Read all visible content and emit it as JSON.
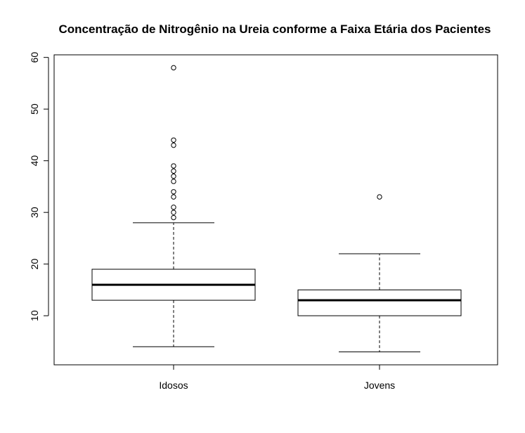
{
  "chart_data": {
    "type": "boxplot",
    "title": "Concentração de Nitrogênio na Ureia conforme a Faixa Etária dos Pacientes",
    "xlabel": "",
    "ylabel": "",
    "ylim": [
      0.5,
      60.5
    ],
    "yticks": [
      10,
      20,
      30,
      40,
      50,
      60
    ],
    "categories": [
      "Idosos",
      "Jovens"
    ],
    "boxes": [
      {
        "name": "Idosos",
        "min": 4,
        "q1": 13,
        "median": 16,
        "q3": 19,
        "max": 28,
        "outliers": [
          29,
          30,
          31,
          33,
          34,
          36,
          37,
          38,
          39,
          43,
          44,
          58
        ]
      },
      {
        "name": "Jovens",
        "min": 3,
        "q1": 10,
        "median": 13,
        "q3": 15,
        "max": 22,
        "outliers": [
          33
        ]
      }
    ]
  }
}
